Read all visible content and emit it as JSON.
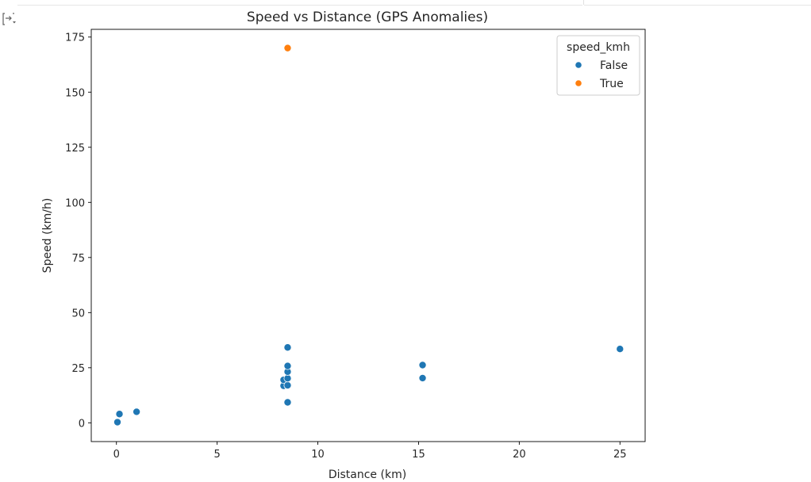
{
  "notebook": {
    "output_toggle_icon": "output-collapse-icon"
  },
  "chart_data": {
    "type": "scatter",
    "title": "Speed vs Distance (GPS Anomalies)",
    "xlabel": "Distance (km)",
    "ylabel": "Speed (km/h)",
    "xlim": [
      -1.25,
      26.25
    ],
    "ylim": [
      -8.5,
      178.5
    ],
    "xticks": [
      0,
      5,
      10,
      15,
      20,
      25
    ],
    "yticks": [
      0,
      25,
      50,
      75,
      100,
      125,
      150,
      175
    ],
    "grid": false,
    "legend": {
      "title": "speed_kmh",
      "placement": "top-right",
      "entries": [
        {
          "label": "False",
          "color": "#1f77b4"
        },
        {
          "label": "True",
          "color": "#ff7f0e"
        }
      ]
    },
    "series": [
      {
        "name": "False",
        "color": "#1f77b4",
        "points": [
          {
            "x": 0.05,
            "y": 0.3
          },
          {
            "x": 0.15,
            "y": 4.0
          },
          {
            "x": 1.0,
            "y": 5.0
          },
          {
            "x": 8.3,
            "y": 16.8
          },
          {
            "x": 8.3,
            "y": 19.5
          },
          {
            "x": 8.5,
            "y": 9.3
          },
          {
            "x": 8.5,
            "y": 17.0
          },
          {
            "x": 8.5,
            "y": 20.2
          },
          {
            "x": 8.5,
            "y": 23.2
          },
          {
            "x": 8.5,
            "y": 25.8
          },
          {
            "x": 8.5,
            "y": 34.2
          },
          {
            "x": 15.2,
            "y": 20.3
          },
          {
            "x": 15.2,
            "y": 26.2
          },
          {
            "x": 25.0,
            "y": 33.5
          }
        ]
      },
      {
        "name": "True",
        "color": "#ff7f0e",
        "points": [
          {
            "x": 8.5,
            "y": 170.0
          }
        ]
      }
    ]
  }
}
